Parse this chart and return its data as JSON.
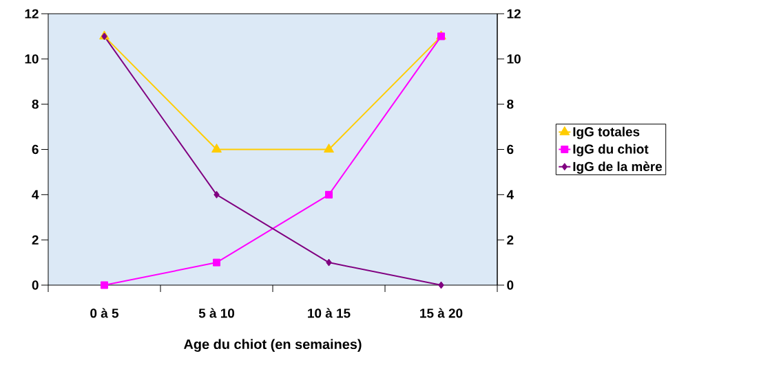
{
  "chart_data": {
    "type": "line",
    "xlabel": "Age du chiot (en semaines)",
    "categories": [
      "0 à 5",
      "5 à 10",
      "10 à 15",
      "15 à 20"
    ],
    "series": [
      {
        "name": "IgG totales",
        "color": "#ffcc00",
        "marker": "triangle",
        "values": [
          11,
          6,
          6,
          11
        ]
      },
      {
        "name": "IgG du chiot",
        "color": "#ff00ff",
        "marker": "square",
        "values": [
          0,
          1,
          4,
          11
        ]
      },
      {
        "name": "IgG de la mère",
        "color": "#800080",
        "marker": "diamond",
        "values": [
          11,
          4,
          1,
          0
        ]
      }
    ],
    "ylim": [
      0,
      12
    ],
    "yticks": [
      0,
      2,
      4,
      6,
      8,
      10,
      12
    ],
    "y2lim": [
      0,
      12
    ],
    "y2ticks": [
      0,
      2,
      4,
      6,
      8,
      10,
      12
    ],
    "grid": false,
    "legend": "right",
    "line_style": "solid"
  }
}
